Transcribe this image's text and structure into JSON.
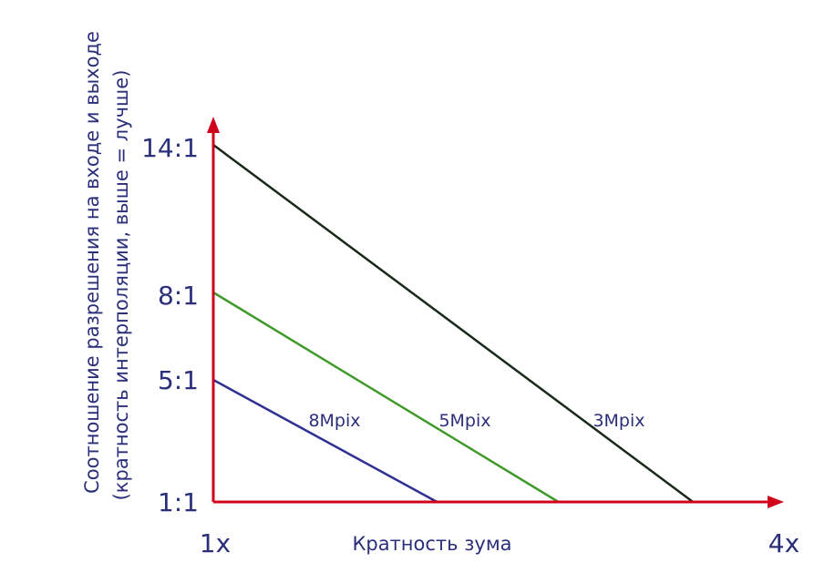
{
  "chart_data": {
    "type": "line",
    "xlabel": "Кратность зума",
    "ylabel_lines": [
      "Соотношение разрешения на входе и выходе",
      "(кратность интерполяции, выше = лучше)"
    ],
    "x_tick_labels": [
      "1x",
      "4x"
    ],
    "y_tick_labels": [
      "1:1",
      "5:1",
      "8:1",
      "14:1"
    ],
    "xlim": [
      1,
      4
    ],
    "series": [
      {
        "name": "8Mpix",
        "color": "#2e3192",
        "x": [
          1,
          2.18
        ],
        "y": [
          5,
          1
        ]
      },
      {
        "name": "5Mpix",
        "color": "#3f9a2a",
        "x": [
          1,
          2.82
        ],
        "y": [
          8,
          1
        ]
      },
      {
        "name": "3Mpix",
        "color": "#1a2a1a",
        "x": [
          1,
          3.53
        ],
        "y": [
          14,
          1
        ]
      }
    ],
    "axis_color": "#d0021b"
  }
}
